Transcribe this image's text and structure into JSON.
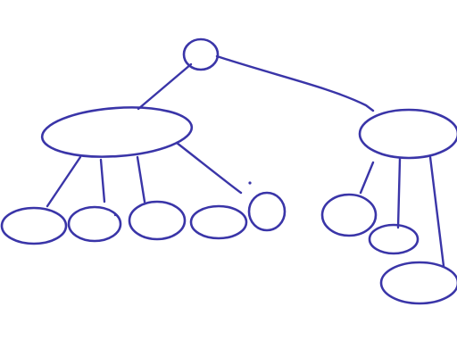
{
  "diagram": {
    "type": "tree",
    "style": "hand-drawn sketch",
    "ink_color": "#3a35a8",
    "background_color": "#ffffff",
    "nodes": [
      {
        "id": "root",
        "level": 0,
        "label": ""
      },
      {
        "id": "left-parent",
        "level": 1,
        "label": ""
      },
      {
        "id": "right-parent",
        "level": 1,
        "label": ""
      },
      {
        "id": "left-child-1",
        "level": 2,
        "label": ""
      },
      {
        "id": "left-child-2",
        "level": 2,
        "label": ""
      },
      {
        "id": "left-child-3",
        "level": 2,
        "label": ""
      },
      {
        "id": "left-child-4",
        "level": 2,
        "label": ""
      },
      {
        "id": "left-child-5",
        "level": 2,
        "label": ""
      },
      {
        "id": "right-child-1",
        "level": 2,
        "label": ""
      },
      {
        "id": "right-child-2",
        "level": 2,
        "label": ""
      },
      {
        "id": "right-child-3",
        "level": 2,
        "label": ""
      }
    ],
    "edges": [
      {
        "from": "root",
        "to": "left-parent"
      },
      {
        "from": "root",
        "to": "right-parent"
      },
      {
        "from": "left-parent",
        "to": "left-child-1"
      },
      {
        "from": "left-parent",
        "to": "left-child-2"
      },
      {
        "from": "left-parent",
        "to": "left-child-3"
      },
      {
        "from": "left-parent",
        "to": "left-child-4"
      },
      {
        "from": "right-parent",
        "to": "right-child-1"
      },
      {
        "from": "right-parent",
        "to": "right-child-2"
      },
      {
        "from": "right-parent",
        "to": "right-child-3"
      }
    ]
  }
}
